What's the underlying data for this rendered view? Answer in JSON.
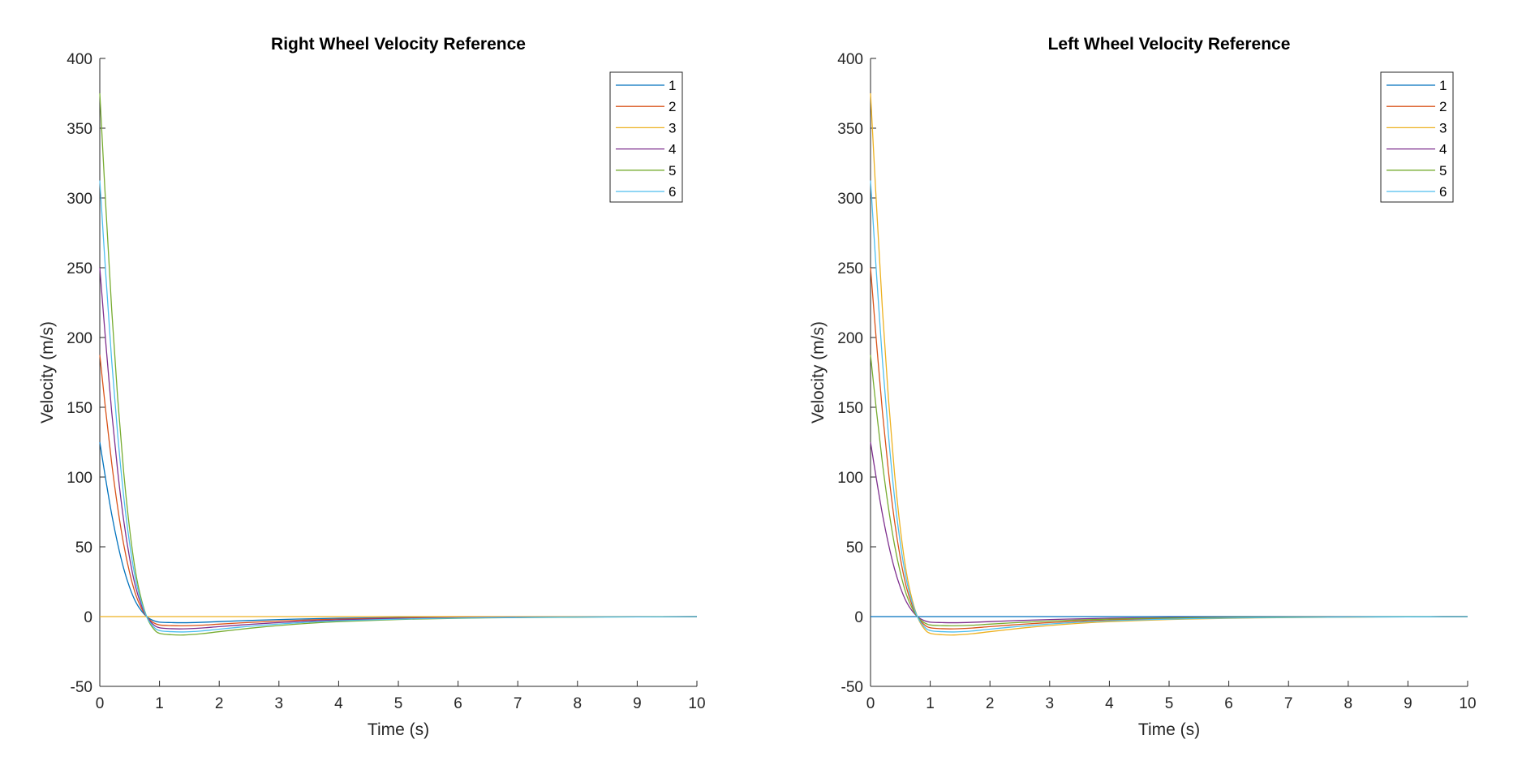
{
  "chart_data": [
    {
      "type": "line",
      "title": "Right Wheel Velocity Reference",
      "xlabel": "Time (s)",
      "ylabel": "Velocity (m/s)",
      "xlim": [
        0,
        10
      ],
      "ylim": [
        -50,
        400
      ],
      "xticks": [
        0,
        1,
        2,
        3,
        4,
        5,
        6,
        7,
        8,
        9,
        10
      ],
      "yticks": [
        -50,
        0,
        50,
        100,
        150,
        200,
        250,
        300,
        350,
        400
      ],
      "grid": false,
      "legend_position": "top-right",
      "x": [
        0,
        0.1,
        0.2,
        0.3,
        0.4,
        0.5,
        0.6,
        0.7,
        0.8,
        0.9,
        1.0,
        1.2,
        1.4,
        1.7,
        2.0,
        2.5,
        3,
        3.5,
        4,
        5,
        6,
        7,
        8,
        9,
        10
      ],
      "series": [
        {
          "name": "1",
          "color": "#0072BD",
          "values": [
            125.0,
            98.2,
            73.2,
            52.1,
            34.5,
            20.9,
            10.6,
            3.9,
            -0.5,
            -2.9,
            -4.0,
            -4.3,
            -4.4,
            -4.1,
            -3.6,
            -2.8,
            -2.1,
            -1.6,
            -1.2,
            -0.7,
            -0.4,
            -0.2,
            -0.1,
            -0.1,
            0.0
          ]
        },
        {
          "name": "2",
          "color": "#D95319",
          "values": [
            187.5,
            147.3,
            109.8,
            78.1,
            51.8,
            31.4,
            15.9,
            5.8,
            -0.8,
            -4.4,
            -6.0,
            -6.5,
            -6.6,
            -6.2,
            -5.4,
            -4.2,
            -3.2,
            -2.4,
            -1.8,
            -1.0,
            -0.6,
            -0.3,
            -0.2,
            -0.1,
            0.0
          ]
        },
        {
          "name": "3",
          "color": "#EDB120",
          "values": [
            0,
            0,
            0,
            0,
            0,
            0,
            0,
            0,
            0,
            0,
            0,
            0,
            0,
            0,
            0,
            0,
            0,
            0,
            0,
            0,
            0,
            0,
            0,
            0,
            0
          ]
        },
        {
          "name": "4",
          "color": "#7E2F8E",
          "values": [
            250.0,
            196.4,
            146.4,
            104.2,
            69.0,
            41.8,
            21.2,
            7.8,
            -1.0,
            -5.8,
            -8.0,
            -8.7,
            -8.8,
            -8.2,
            -7.2,
            -5.6,
            -4.3,
            -3.2,
            -2.4,
            -1.4,
            -0.8,
            -0.4,
            -0.3,
            -0.1,
            0.0
          ]
        },
        {
          "name": "5",
          "color": "#77AC30",
          "values": [
            375.0,
            294.6,
            219.6,
            156.3,
            103.5,
            62.7,
            31.8,
            11.7,
            -1.5,
            -8.7,
            -12.0,
            -13.0,
            -13.2,
            -12.3,
            -10.8,
            -8.4,
            -6.4,
            -4.8,
            -3.6,
            -2.1,
            -1.2,
            -0.7,
            -0.4,
            -0.2,
            0.0
          ]
        },
        {
          "name": "6",
          "color": "#4DBEEE",
          "values": [
            312.5,
            245.5,
            183.0,
            130.3,
            86.3,
            52.3,
            26.5,
            9.8,
            -1.3,
            -7.3,
            -10.0,
            -10.8,
            -11.0,
            -10.3,
            -9.0,
            -7.0,
            -5.3,
            -4.0,
            -3.0,
            -1.8,
            -1.0,
            -0.6,
            -0.3,
            -0.2,
            0.0
          ]
        }
      ]
    },
    {
      "type": "line",
      "title": "Left Wheel Velocity Reference",
      "xlabel": "Time (s)",
      "ylabel": "Velocity (m/s)",
      "xlim": [
        0,
        10
      ],
      "ylim": [
        -50,
        400
      ],
      "xticks": [
        0,
        1,
        2,
        3,
        4,
        5,
        6,
        7,
        8,
        9,
        10
      ],
      "yticks": [
        -50,
        0,
        50,
        100,
        150,
        200,
        250,
        300,
        350,
        400
      ],
      "grid": false,
      "legend_position": "top-right",
      "x": [
        0,
        0.1,
        0.2,
        0.3,
        0.4,
        0.5,
        0.6,
        0.7,
        0.8,
        0.9,
        1.0,
        1.2,
        1.4,
        1.7,
        2.0,
        2.5,
        3,
        3.5,
        4,
        5,
        6,
        7,
        8,
        9,
        10
      ],
      "series": [
        {
          "name": "1",
          "color": "#0072BD",
          "values": [
            0,
            0,
            0,
            0,
            0,
            0,
            0,
            0,
            0,
            0,
            0,
            0,
            0,
            0,
            0,
            0,
            0,
            0,
            0,
            0,
            0,
            0,
            0,
            0,
            0
          ]
        },
        {
          "name": "2",
          "color": "#D95319",
          "values": [
            250.0,
            196.4,
            146.4,
            104.2,
            69.0,
            41.8,
            21.2,
            7.8,
            -1.0,
            -5.8,
            -8.0,
            -8.7,
            -8.8,
            -8.2,
            -7.2,
            -5.6,
            -4.3,
            -3.2,
            -2.4,
            -1.4,
            -0.8,
            -0.4,
            -0.3,
            -0.1,
            0.0
          ]
        },
        {
          "name": "3",
          "color": "#EDB120",
          "values": [
            375.0,
            294.6,
            219.6,
            156.3,
            103.5,
            62.7,
            31.8,
            11.7,
            -1.5,
            -8.7,
            -12.0,
            -13.0,
            -13.2,
            -12.3,
            -10.8,
            -8.4,
            -6.4,
            -4.8,
            -3.6,
            -2.1,
            -1.2,
            -0.7,
            -0.4,
            -0.2,
            0.0
          ]
        },
        {
          "name": "4",
          "color": "#7E2F8E",
          "values": [
            125.0,
            98.2,
            73.2,
            52.1,
            34.5,
            20.9,
            10.6,
            3.9,
            -0.5,
            -2.9,
            -4.0,
            -4.3,
            -4.4,
            -4.1,
            -3.6,
            -2.8,
            -2.1,
            -1.6,
            -1.2,
            -0.7,
            -0.4,
            -0.2,
            -0.1,
            -0.1,
            0.0
          ]
        },
        {
          "name": "5",
          "color": "#77AC30",
          "values": [
            187.5,
            147.3,
            109.8,
            78.1,
            51.8,
            31.4,
            15.9,
            5.8,
            -0.8,
            -4.4,
            -6.0,
            -6.5,
            -6.6,
            -6.2,
            -5.4,
            -4.2,
            -3.2,
            -2.4,
            -1.8,
            -1.0,
            -0.6,
            -0.3,
            -0.2,
            -0.1,
            0.0
          ]
        },
        {
          "name": "6",
          "color": "#4DBEEE",
          "values": [
            312.5,
            245.5,
            183.0,
            130.3,
            86.3,
            52.3,
            26.5,
            9.8,
            -1.3,
            -7.3,
            -10.0,
            -10.8,
            -11.0,
            -10.3,
            -9.0,
            -7.0,
            -5.3,
            -4.0,
            -3.0,
            -1.8,
            -1.0,
            -0.6,
            -0.3,
            -0.2,
            0.0
          ]
        }
      ]
    }
  ]
}
